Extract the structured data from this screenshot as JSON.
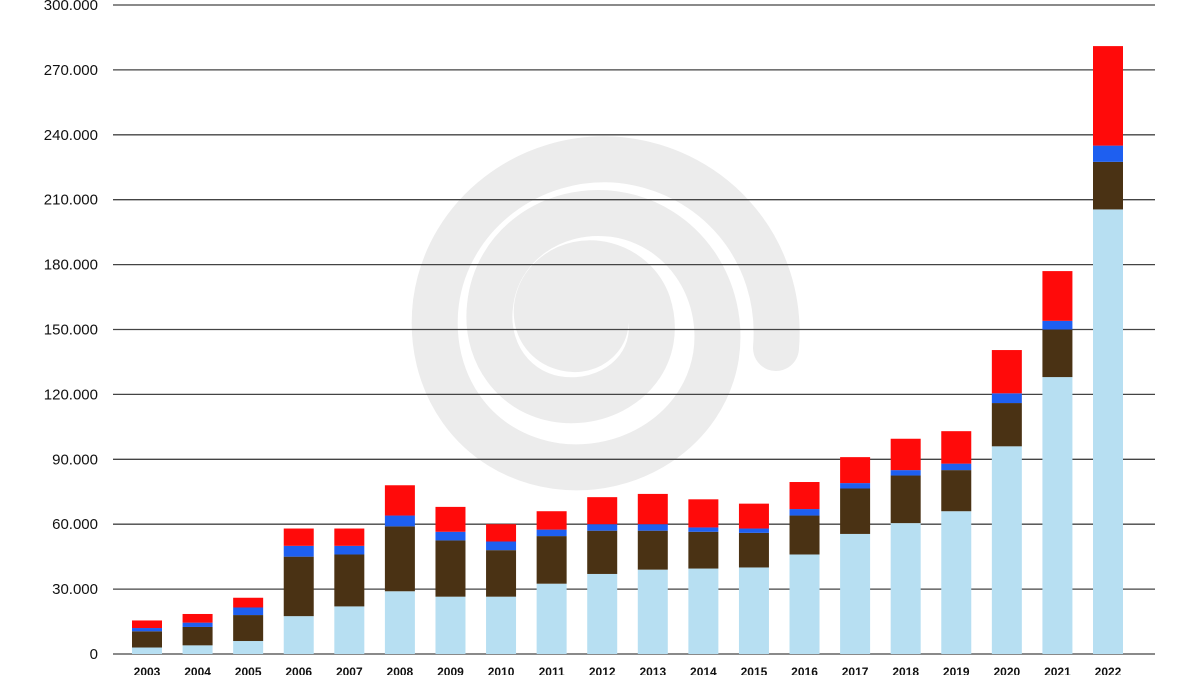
{
  "chart_data": {
    "type": "bar",
    "stacked": true,
    "categories": [
      "2003",
      "2004",
      "2005",
      "2006",
      "2007",
      "2008",
      "2009",
      "2010",
      "2011",
      "2012",
      "2013",
      "2014",
      "2015",
      "2016",
      "2017",
      "2018",
      "2019",
      "2020",
      "2021",
      "2022"
    ],
    "series": [
      {
        "color": "#b7dff2",
        "values": [
          3000,
          4000,
          6000,
          17500,
          22000,
          29000,
          26500,
          26500,
          32500,
          37000,
          39000,
          39500,
          40000,
          46000,
          55500,
          60500,
          66000,
          96000,
          128000,
          205500
        ]
      },
      {
        "color": "#4a3214",
        "values": [
          7500,
          8500,
          12000,
          27500,
          24000,
          30000,
          26000,
          21500,
          22000,
          20000,
          18000,
          17000,
          16000,
          18000,
          21000,
          22000,
          19000,
          20000,
          22000,
          22000
        ]
      },
      {
        "color": "#1e5ff0",
        "values": [
          1500,
          2000,
          3500,
          5000,
          4000,
          5000,
          4000,
          4000,
          3000,
          3000,
          3000,
          2000,
          2000,
          3000,
          2500,
          2500,
          3000,
          4500,
          4000,
          7500
        ]
      },
      {
        "color": "#ff0a0a",
        "values": [
          3500,
          4000,
          4500,
          8000,
          8000,
          14000,
          11500,
          8000,
          8500,
          12500,
          14000,
          13000,
          11500,
          12500,
          12000,
          14500,
          15000,
          20000,
          23000,
          46000
        ]
      }
    ],
    "ylim": [
      0,
      300000
    ],
    "yticks": [
      0,
      30000,
      60000,
      90000,
      120000,
      150000,
      180000,
      210000,
      240000,
      270000,
      300000
    ],
    "ytick_labels": [
      "0",
      "30.000",
      "60.000",
      "90.000",
      "120.000",
      "150.000",
      "180.000",
      "210.000",
      "240.000",
      "270.000",
      "300.000"
    ],
    "grid": true,
    "legend": "none",
    "watermark": "spiral-logo"
  },
  "colors": {
    "gridline": "#444444",
    "watermark": "#ececec"
  }
}
